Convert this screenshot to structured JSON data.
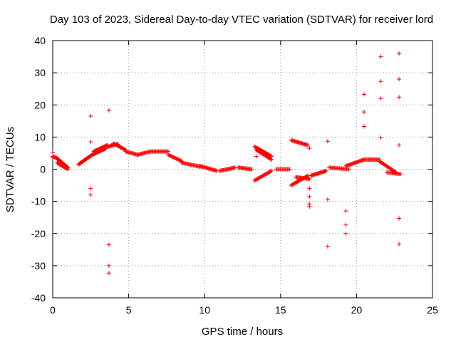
{
  "chart_data": {
    "type": "scatter",
    "title": "Day 103 of 2023, Sidereal Day-to-day VTEC variation (SDTVAR) for receiver lord",
    "xlabel": "GPS time / hours",
    "ylabel": "SDTVAR / TECUs",
    "xlim": [
      0,
      25
    ],
    "ylim": [
      -40,
      40
    ],
    "xticks": [
      0,
      5,
      10,
      15,
      20,
      25
    ],
    "yticks": [
      -40,
      -30,
      -20,
      -10,
      0,
      10,
      20,
      30,
      40
    ],
    "grid": true,
    "marker": "plus",
    "color": "#ff0000",
    "segments": [
      {
        "x0": 0.0,
        "x1": 0.25,
        "y0": 4.0,
        "y1": 3.5,
        "n": 6
      },
      {
        "x0": 0.25,
        "x1": 1.0,
        "y0": 3.5,
        "y1": 0.5,
        "n": 22
      },
      {
        "x0": 0.3,
        "x1": 1.0,
        "y0": 2.0,
        "y1": 0.0,
        "n": 16
      },
      {
        "x0": 1.7,
        "x1": 2.6,
        "y0": 1.5,
        "y1": 4.5,
        "n": 22
      },
      {
        "x0": 2.6,
        "x1": 3.5,
        "y0": 4.5,
        "y1": 6.5,
        "n": 22
      },
      {
        "x0": 2.7,
        "x1": 3.6,
        "y0": 5.5,
        "y1": 7.5,
        "n": 18
      },
      {
        "x0": 3.6,
        "x1": 4.3,
        "y0": 7.0,
        "y1": 7.8,
        "n": 14
      },
      {
        "x0": 4.0,
        "x1": 4.8,
        "y0": 8.0,
        "y1": 6.0,
        "n": 16
      },
      {
        "x0": 4.8,
        "x1": 5.6,
        "y0": 5.5,
        "y1": 4.5,
        "n": 14
      },
      {
        "x0": 5.6,
        "x1": 6.4,
        "y0": 4.5,
        "y1": 5.5,
        "n": 14
      },
      {
        "x0": 6.4,
        "x1": 7.6,
        "y0": 5.5,
        "y1": 5.5,
        "n": 20
      },
      {
        "x0": 7.6,
        "x1": 8.5,
        "y0": 4.5,
        "y1": 2.5,
        "n": 16
      },
      {
        "x0": 8.5,
        "x1": 9.7,
        "y0": 2.0,
        "y1": 0.8,
        "n": 20
      },
      {
        "x0": 9.7,
        "x1": 10.8,
        "y0": 1.0,
        "y1": -0.5,
        "n": 20
      },
      {
        "x0": 11.0,
        "x1": 12.0,
        "y0": -0.5,
        "y1": 0.5,
        "n": 18
      },
      {
        "x0": 12.2,
        "x1": 13.1,
        "y0": 0.5,
        "y1": 0.0,
        "n": 16
      },
      {
        "x0": 13.3,
        "x1": 14.4,
        "y0": 7.0,
        "y1": 4.0,
        "n": 22
      },
      {
        "x0": 13.4,
        "x1": 14.4,
        "y0": 6.0,
        "y1": 3.0,
        "n": 16
      },
      {
        "x0": 13.3,
        "x1": 14.4,
        "y0": -3.5,
        "y1": -0.5,
        "n": 20
      },
      {
        "x0": 14.7,
        "x1": 15.6,
        "y0": 0.0,
        "y1": 0.0,
        "n": 14
      },
      {
        "x0": 15.7,
        "x1": 16.8,
        "y0": 9.0,
        "y1": 7.5,
        "n": 20
      },
      {
        "x0": 15.7,
        "x1": 16.8,
        "y0": -5.0,
        "y1": -2.0,
        "n": 20
      },
      {
        "x0": 16.0,
        "x1": 16.9,
        "y0": -2.5,
        "y1": -3.0,
        "n": 16
      },
      {
        "x0": 17.0,
        "x1": 18.0,
        "y0": -2.0,
        "y1": -0.5,
        "n": 20
      },
      {
        "x0": 18.2,
        "x1": 19.5,
        "y0": 0.5,
        "y1": 0.0,
        "n": 20
      },
      {
        "x0": 19.3,
        "x1": 20.5,
        "y0": 1.0,
        "y1": 3.0,
        "n": 22
      },
      {
        "x0": 20.5,
        "x1": 21.5,
        "y0": 3.0,
        "y1": 3.0,
        "n": 18
      },
      {
        "x0": 21.5,
        "x1": 22.6,
        "y0": 2.5,
        "y1": -1.0,
        "n": 20
      },
      {
        "x0": 22.0,
        "x1": 22.9,
        "y0": -1.0,
        "y1": -1.5,
        "n": 14
      }
    ],
    "points": [
      [
        0.0,
        5.2
      ],
      [
        0.0,
        3.5
      ],
      [
        2.5,
        16.5
      ],
      [
        2.5,
        8.5
      ],
      [
        2.5,
        -6.0
      ],
      [
        2.5,
        -8.0
      ],
      [
        3.7,
        18.3
      ],
      [
        3.7,
        -23.5
      ],
      [
        3.7,
        -30.0
      ],
      [
        3.7,
        -32.3
      ],
      [
        13.4,
        4.0
      ],
      [
        16.9,
        6.5
      ],
      [
        16.9,
        -6.0
      ],
      [
        16.9,
        -8.5
      ],
      [
        16.9,
        -10.8
      ],
      [
        16.9,
        -11.6
      ],
      [
        18.1,
        8.7
      ],
      [
        18.1,
        -9.4
      ],
      [
        18.1,
        -24.0
      ],
      [
        19.3,
        -13.0
      ],
      [
        19.3,
        -17.3
      ],
      [
        19.3,
        -20.0
      ],
      [
        20.5,
        23.3
      ],
      [
        20.5,
        17.8
      ],
      [
        20.5,
        13.3
      ],
      [
        21.6,
        35.0
      ],
      [
        21.6,
        27.3
      ],
      [
        21.6,
        22.0
      ],
      [
        21.6,
        9.8
      ],
      [
        22.8,
        36.0
      ],
      [
        22.8,
        28.0
      ],
      [
        22.8,
        22.4
      ],
      [
        22.8,
        7.5
      ],
      [
        22.8,
        -15.3
      ],
      [
        22.8,
        -23.3
      ]
    ]
  }
}
